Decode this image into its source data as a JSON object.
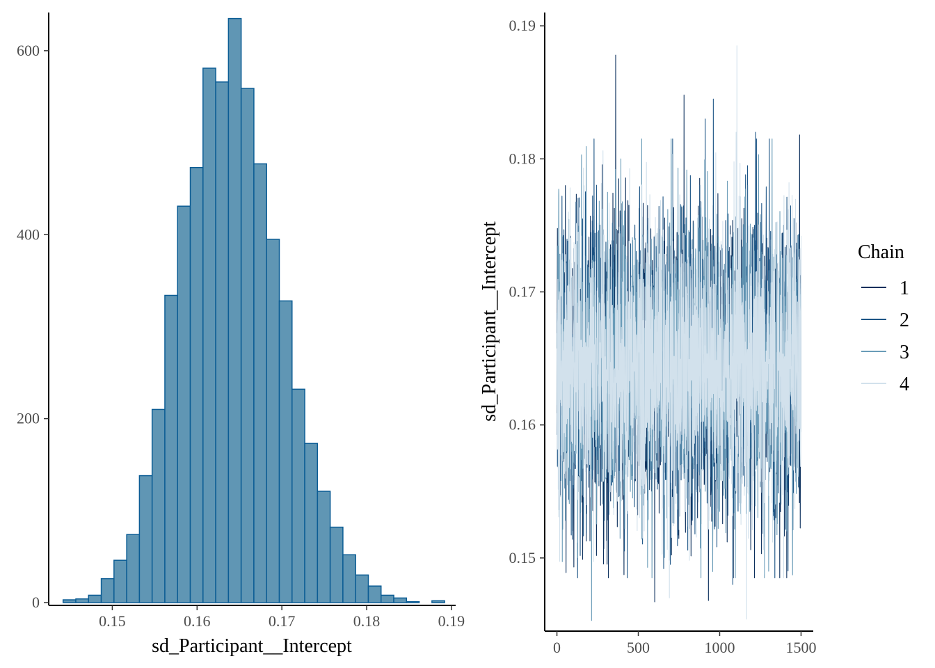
{
  "chart_data": [
    {
      "type": "bar",
      "subtype": "histogram",
      "title": "",
      "xlabel": "sd_Participant__Intercept",
      "ylabel": "",
      "xlim": [
        0.1425,
        0.1905
      ],
      "ylim": [
        0,
        640
      ],
      "x_ticks": [
        0.15,
        0.16,
        0.17,
        0.18,
        0.19
      ],
      "x_tick_labels": [
        "0.15",
        "0.16",
        "0.17",
        "0.18",
        "0.19"
      ],
      "y_ticks": [
        0,
        200,
        400,
        600
      ],
      "y_tick_labels": [
        "0",
        "200",
        "400",
        "600"
      ],
      "bin_width": 0.0015,
      "bin_start": 0.1442,
      "values": [
        3,
        4,
        8,
        26,
        46,
        74,
        138,
        210,
        334,
        431,
        473,
        581,
        566,
        635,
        559,
        477,
        395,
        328,
        232,
        173,
        121,
        82,
        52,
        30,
        18,
        8,
        5,
        1,
        0,
        2
      ],
      "fill_color": "#6096b4",
      "edge_color": "#0b5c94",
      "grid": false
    },
    {
      "type": "line",
      "subtype": "trace",
      "title": "",
      "xlabel": "",
      "ylabel": "sd_Participant__Intercept",
      "xlim": [
        -75,
        1575
      ],
      "ylim": [
        0.1445,
        0.191
      ],
      "x_ticks": [
        0,
        500,
        1000,
        1500
      ],
      "x_tick_labels": [
        "0",
        "500",
        "1000",
        "1500"
      ],
      "y_ticks": [
        0.15,
        0.16,
        0.17,
        0.18,
        0.19
      ],
      "y_tick_labels": [
        "0.15",
        "0.16",
        "0.17",
        "0.18",
        "0.19"
      ],
      "n_iterations": 1500,
      "center": 0.1645,
      "sd": 0.0055,
      "legend": {
        "title": "Chain",
        "position": "right",
        "entries": [
          {
            "name": "1",
            "color": "#0b2f5c"
          },
          {
            "name": "2",
            "color": "#1d5586"
          },
          {
            "name": "3",
            "color": "#6a9cb8"
          },
          {
            "name": "4",
            "color": "#d2e1ec"
          }
        ]
      },
      "series": [
        {
          "name": "1",
          "color": "#0b2f5c",
          "extremes": [
            [
              360,
              0.1878
            ],
            [
              600,
              0.1467
            ],
            [
              930,
              0.1468
            ],
            [
              780,
              0.1848
            ],
            [
              55,
              0.1489
            ],
            [
              1490,
              0.1818
            ]
          ]
        },
        {
          "name": "2",
          "color": "#1d5586",
          "extremes": [
            [
              910,
              0.183
            ],
            [
              1220,
              0.182
            ],
            [
              960,
              0.1845
            ],
            [
              1080,
              0.148
            ]
          ]
        },
        {
          "name": "3",
          "color": "#6a9cb8",
          "extremes": [
            [
              212,
              0.1453
            ],
            [
              150,
              0.1803
            ],
            [
              1300,
              0.149
            ]
          ]
        },
        {
          "name": "4",
          "color": "#d2e1ec",
          "extremes": [
            [
              1105,
              0.1885
            ],
            [
              1165,
              0.1454
            ],
            [
              690,
              0.147
            ],
            [
              1100,
              0.182
            ]
          ]
        }
      ],
      "grid": false
    }
  ]
}
